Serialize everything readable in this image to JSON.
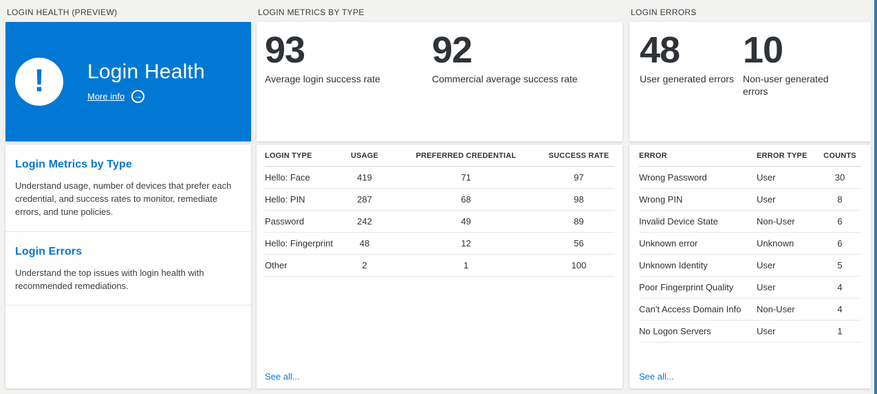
{
  "colors": {
    "accent_blue": "#0078d4",
    "page_background": "#f2f2f1",
    "card_background": "#ffffff",
    "blade_edge_blue": "#2e7bb4",
    "number_text": "#2f3337"
  },
  "health_panel": {
    "header": "LOGIN HEALTH (PREVIEW)",
    "tile": {
      "title": "Login Health",
      "more_info_label": "More info",
      "icon": "exclamation-icon",
      "arrow_icon": "arrow-right-circle-icon",
      "exclamation_glyph": "!",
      "arrow_glyph": "→"
    },
    "items": [
      {
        "title": "Login Metrics by Type",
        "description": "Understand usage, number of devices that prefer each credential, and success rates to monitor, remediate errors, and tune policies."
      },
      {
        "title": "Login Errors",
        "description": "Understand the top issues with login health with recommended remediations."
      }
    ]
  },
  "metrics_panel": {
    "header": "LOGIN METRICS BY TYPE",
    "stats": [
      {
        "value": "93",
        "label": "Average login success rate"
      },
      {
        "value": "92",
        "label": "Commercial average success rate"
      }
    ],
    "table": {
      "columns": [
        "LOGIN TYPE",
        "USAGE",
        "PREFERRED CREDENTIAL",
        "SUCCESS RATE"
      ],
      "rows": [
        [
          "Hello: Face",
          "419",
          "71",
          "97"
        ],
        [
          "Hello: PIN",
          "287",
          "68",
          "98"
        ],
        [
          "Password",
          "242",
          "49",
          "89"
        ],
        [
          "Hello: Fingerprint",
          "48",
          "12",
          "56"
        ],
        [
          "Other",
          "2",
          "1",
          "100"
        ]
      ]
    },
    "see_all_label": "See all..."
  },
  "errors_panel": {
    "header": "LOGIN ERRORS",
    "stats": [
      {
        "value": "48",
        "label": "User generated errors"
      },
      {
        "value": "10",
        "label": "Non-user generated errors"
      }
    ],
    "table": {
      "columns": [
        "ERROR",
        "ERROR TYPE",
        "COUNTS"
      ],
      "rows": [
        [
          "Wrong Password",
          "User",
          "30"
        ],
        [
          "Wrong PIN",
          "User",
          "8"
        ],
        [
          "Invalid Device State",
          "Non-User",
          "6"
        ],
        [
          "Unknown error",
          "Unknown",
          "6"
        ],
        [
          "Unknown Identity",
          "User",
          "5"
        ],
        [
          "Poor Fingerprint Quality",
          "User",
          "4"
        ],
        [
          "Can't Access Domain Info",
          "Non-User",
          "4"
        ],
        [
          "No Logon Servers",
          "User",
          "1"
        ]
      ]
    },
    "see_all_label": "See all..."
  }
}
